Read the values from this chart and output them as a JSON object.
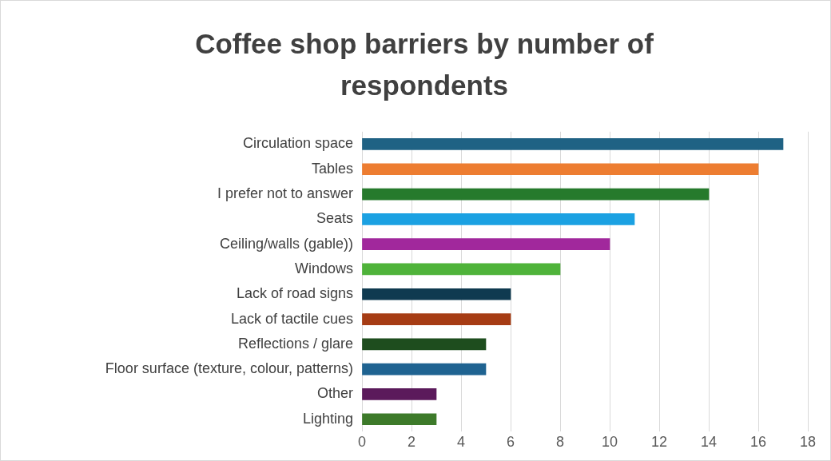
{
  "chart_data": {
    "type": "bar",
    "orientation": "horizontal",
    "title": "Coffee shop barriers by number of respondents",
    "categories": [
      "Circulation space",
      "Tables",
      "I prefer not to answer",
      "Seats",
      "Ceiling/walls (gable))",
      "Windows",
      "Lack of road signs",
      "Lack of tactile cues",
      "Reflections / glare",
      "Floor surface (texture, colour, patterns)",
      "Other",
      "Lighting"
    ],
    "values": [
      17,
      16,
      14,
      11,
      10,
      8,
      6,
      6,
      5,
      5,
      3,
      3
    ],
    "colors": [
      "#1f6284",
      "#ed7d31",
      "#267a2c",
      "#1ba1e2",
      "#a1289c",
      "#4fb33a",
      "#0f3a50",
      "#a63c14",
      "#1e4d1e",
      "#1f6391",
      "#5b1a5b",
      "#3d7a2a"
    ],
    "xlim": [
      0,
      18
    ],
    "xticks": [
      0,
      2,
      4,
      6,
      8,
      10,
      12,
      14,
      16,
      18
    ],
    "grid": "x",
    "legend": false
  }
}
